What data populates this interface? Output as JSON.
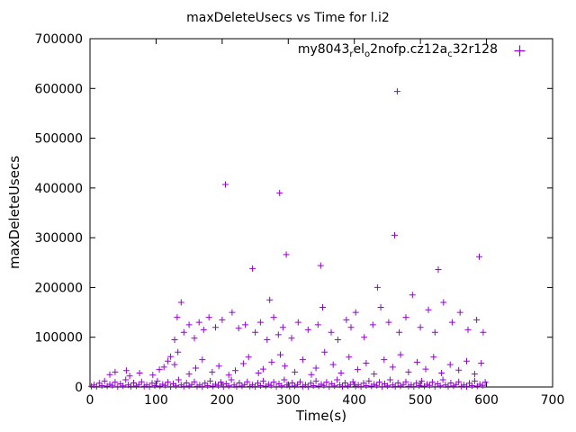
{
  "chart_data": {
    "type": "scatter",
    "title": "maxDeleteUsecs vs Time for l.i2",
    "xlabel": "Time(s)",
    "ylabel": "maxDeleteUsecs",
    "xlim": [
      0,
      700
    ],
    "ylim": [
      0,
      700000
    ],
    "xticks": [
      0,
      100,
      200,
      300,
      400,
      500,
      600,
      700
    ],
    "yticks": [
      0,
      100000,
      200000,
      300000,
      400000,
      500000,
      600000,
      700000
    ],
    "grid": false,
    "legend": {
      "position": "top-right-inside",
      "entries": [
        {
          "name": "my8043_rel_o2nofp.cz12a_c32r128",
          "marker": "+",
          "color": "#9400d3",
          "display_segments": [
            {
              "text": "my8043"
            },
            {
              "text": "r",
              "sub": true
            },
            {
              "text": "el"
            },
            {
              "text": "o",
              "sub": true
            },
            {
              "text": "2nofp.cz12a"
            },
            {
              "text": "c",
              "sub": true
            },
            {
              "text": "32r128"
            }
          ]
        }
      ]
    },
    "series": [
      {
        "name": "my8043_rel_o2nofp.cz12a_c32r128",
        "marker": "+",
        "color": "#9400d3",
        "point_groups": {
          "baseline": [
            [
              2,
              1500
            ],
            [
              6,
              4200
            ],
            [
              10,
              900
            ],
            [
              14,
              7600
            ],
            [
              18,
              2800
            ],
            [
              22,
              12000
            ],
            [
              26,
              1800
            ],
            [
              30,
              5400
            ],
            [
              34,
              3200
            ],
            [
              38,
              9800
            ],
            [
              42,
              700
            ],
            [
              46,
              6300
            ],
            [
              50,
              2400
            ],
            [
              54,
              14500
            ],
            [
              58,
              3900
            ],
            [
              62,
              1100
            ],
            [
              66,
              8200
            ],
            [
              70,
              2000
            ],
            [
              74,
              5000
            ],
            [
              78,
              10500
            ],
            [
              82,
              1500
            ],
            [
              86,
              4200
            ],
            [
              90,
              900
            ],
            [
              94,
              7600
            ],
            [
              98,
              2800
            ],
            [
              102,
              12000
            ],
            [
              106,
              1800
            ],
            [
              110,
              5400
            ],
            [
              114,
              3200
            ],
            [
              118,
              9800
            ],
            [
              122,
              700
            ],
            [
              126,
              6300
            ],
            [
              130,
              2400
            ],
            [
              134,
              14500
            ],
            [
              138,
              3900
            ],
            [
              142,
              1100
            ],
            [
              146,
              8200
            ],
            [
              150,
              2000
            ],
            [
              154,
              5000
            ],
            [
              158,
              10500
            ],
            [
              162,
              1500
            ],
            [
              166,
              4200
            ],
            [
              170,
              900
            ],
            [
              174,
              7600
            ],
            [
              178,
              2800
            ],
            [
              182,
              12000
            ],
            [
              186,
              1800
            ],
            [
              190,
              5400
            ],
            [
              194,
              3200
            ],
            [
              198,
              9800
            ],
            [
              202,
              700
            ],
            [
              206,
              6300
            ],
            [
              210,
              2400
            ],
            [
              214,
              14500
            ],
            [
              218,
              3900
            ],
            [
              222,
              1100
            ],
            [
              226,
              8200
            ],
            [
              230,
              2000
            ],
            [
              234,
              5000
            ],
            [
              238,
              10500
            ],
            [
              242,
              1500
            ],
            [
              246,
              4200
            ],
            [
              250,
              900
            ],
            [
              254,
              7600
            ],
            [
              258,
              2800
            ],
            [
              262,
              12000
            ],
            [
              266,
              1800
            ],
            [
              270,
              5400
            ],
            [
              274,
              3200
            ],
            [
              278,
              9800
            ],
            [
              282,
              700
            ],
            [
              286,
              6300
            ],
            [
              290,
              2400
            ],
            [
              294,
              14500
            ],
            [
              298,
              3900
            ],
            [
              302,
              1100
            ],
            [
              306,
              8200
            ],
            [
              310,
              2000
            ],
            [
              314,
              5000
            ],
            [
              318,
              10500
            ],
            [
              322,
              1500
            ],
            [
              326,
              4200
            ],
            [
              330,
              900
            ],
            [
              334,
              7600
            ],
            [
              338,
              2800
            ],
            [
              342,
              12000
            ],
            [
              346,
              1800
            ],
            [
              350,
              5400
            ],
            [
              354,
              3200
            ],
            [
              358,
              9800
            ],
            [
              362,
              700
            ],
            [
              366,
              6300
            ],
            [
              370,
              2400
            ],
            [
              374,
              14500
            ],
            [
              378,
              3900
            ],
            [
              382,
              1100
            ],
            [
              386,
              8200
            ],
            [
              390,
              2000
            ],
            [
              394,
              5000
            ],
            [
              398,
              10500
            ],
            [
              402,
              1500
            ],
            [
              406,
              4200
            ],
            [
              410,
              900
            ],
            [
              414,
              7600
            ],
            [
              418,
              2800
            ],
            [
              422,
              12000
            ],
            [
              426,
              1800
            ],
            [
              430,
              5400
            ],
            [
              434,
              3200
            ],
            [
              438,
              9800
            ],
            [
              442,
              700
            ],
            [
              446,
              6300
            ],
            [
              450,
              2400
            ],
            [
              454,
              14500
            ],
            [
              458,
              3900
            ],
            [
              462,
              1100
            ],
            [
              466,
              8200
            ],
            [
              470,
              2000
            ],
            [
              474,
              5000
            ],
            [
              478,
              10500
            ],
            [
              482,
              1500
            ],
            [
              486,
              4200
            ],
            [
              490,
              900
            ],
            [
              494,
              7600
            ],
            [
              498,
              2800
            ],
            [
              502,
              12000
            ],
            [
              506,
              1800
            ],
            [
              510,
              5400
            ],
            [
              514,
              3200
            ],
            [
              518,
              9800
            ],
            [
              522,
              700
            ],
            [
              526,
              6300
            ],
            [
              530,
              2400
            ],
            [
              534,
              14500
            ],
            [
              538,
              3900
            ],
            [
              542,
              1100
            ],
            [
              546,
              8200
            ],
            [
              550,
              2000
            ],
            [
              554,
              5000
            ],
            [
              558,
              10500
            ],
            [
              562,
              1500
            ],
            [
              566,
              4200
            ],
            [
              570,
              900
            ],
            [
              574,
              7600
            ],
            [
              578,
              2800
            ],
            [
              582,
              12000
            ],
            [
              586,
              1800
            ],
            [
              590,
              5400
            ],
            [
              594,
              3200
            ],
            [
              598,
              9800
            ]
          ],
          "scatter_mid": [
            [
              30,
              25000
            ],
            [
              38,
              30000
            ],
            [
              55,
              33000
            ],
            [
              60,
              22000
            ],
            [
              75,
              28000
            ],
            [
              95,
              24000
            ],
            [
              105,
              35000
            ],
            [
              112,
              40000
            ],
            [
              118,
              52000
            ],
            [
              122,
              61000
            ],
            [
              128,
              45000
            ],
            [
              133,
              70000
            ],
            [
              150,
              26000
            ],
            [
              160,
              38000
            ],
            [
              170,
              55000
            ],
            [
              185,
              30000
            ],
            [
              195,
              42000
            ],
            [
              210,
              24000
            ],
            [
              220,
              33000
            ],
            [
              232,
              47000
            ],
            [
              240,
              60000
            ],
            [
              255,
              28000
            ],
            [
              262,
              36000
            ],
            [
              275,
              50000
            ],
            [
              288,
              65000
            ],
            [
              295,
              42000
            ],
            [
              310,
              30000
            ],
            [
              322,
              55000
            ],
            [
              335,
              25000
            ],
            [
              342,
              38000
            ],
            [
              355,
              70000
            ],
            [
              368,
              45000
            ],
            [
              380,
              28000
            ],
            [
              392,
              60000
            ],
            [
              405,
              35000
            ],
            [
              418,
              48000
            ],
            [
              430,
              26000
            ],
            [
              445,
              55000
            ],
            [
              458,
              40000
            ],
            [
              470,
              65000
            ],
            [
              482,
              30000
            ],
            [
              495,
              50000
            ],
            [
              508,
              36000
            ],
            [
              520,
              60000
            ],
            [
              532,
              28000
            ],
            [
              545,
              45000
            ],
            [
              558,
              34000
            ],
            [
              570,
              52000
            ],
            [
              582,
              26000
            ],
            [
              592,
              48000
            ]
          ],
          "scatter_high": [
            [
              128,
              95000
            ],
            [
              132,
              140000
            ],
            [
              138,
              170000
            ],
            [
              142,
              110000
            ],
            [
              150,
              125000
            ],
            [
              158,
              98000
            ],
            [
              165,
              130000
            ],
            [
              172,
              115000
            ],
            [
              180,
              140000
            ],
            [
              190,
              120000
            ],
            [
              200,
              135000
            ],
            [
              215,
              150000
            ],
            [
              225,
              118000
            ],
            [
              235,
              125000
            ],
            [
              250,
              110000
            ],
            [
              258,
              130000
            ],
            [
              268,
              95000
            ],
            [
              272,
              175000
            ],
            [
              278,
              140000
            ],
            [
              285,
              105000
            ],
            [
              292,
              120000
            ],
            [
              305,
              98000
            ],
            [
              315,
              130000
            ],
            [
              330,
              115000
            ],
            [
              345,
              125000
            ],
            [
              352,
              160000
            ],
            [
              365,
              110000
            ],
            [
              375,
              95000
            ],
            [
              388,
              135000
            ],
            [
              395,
              120000
            ],
            [
              402,
              150000
            ],
            [
              415,
              100000
            ],
            [
              428,
              125000
            ],
            [
              435,
              200000
            ],
            [
              440,
              160000
            ],
            [
              452,
              130000
            ],
            [
              468,
              110000
            ],
            [
              478,
              140000
            ],
            [
              488,
              185000
            ],
            [
              500,
              120000
            ],
            [
              512,
              155000
            ],
            [
              522,
              110000
            ],
            [
              535,
              170000
            ],
            [
              548,
              130000
            ],
            [
              560,
              150000
            ],
            [
              572,
              115000
            ],
            [
              585,
              135000
            ],
            [
              595,
              110000
            ]
          ],
          "outliers": [
            [
              205,
              407000
            ],
            [
              287,
              390000
            ],
            [
              465,
              594000
            ],
            [
              461,
              305000
            ],
            [
              297,
              266000
            ],
            [
              589,
              262000
            ],
            [
              349,
              244000
            ],
            [
              246,
              238000
            ],
            [
              527,
              236000
            ]
          ]
        }
      }
    ]
  }
}
